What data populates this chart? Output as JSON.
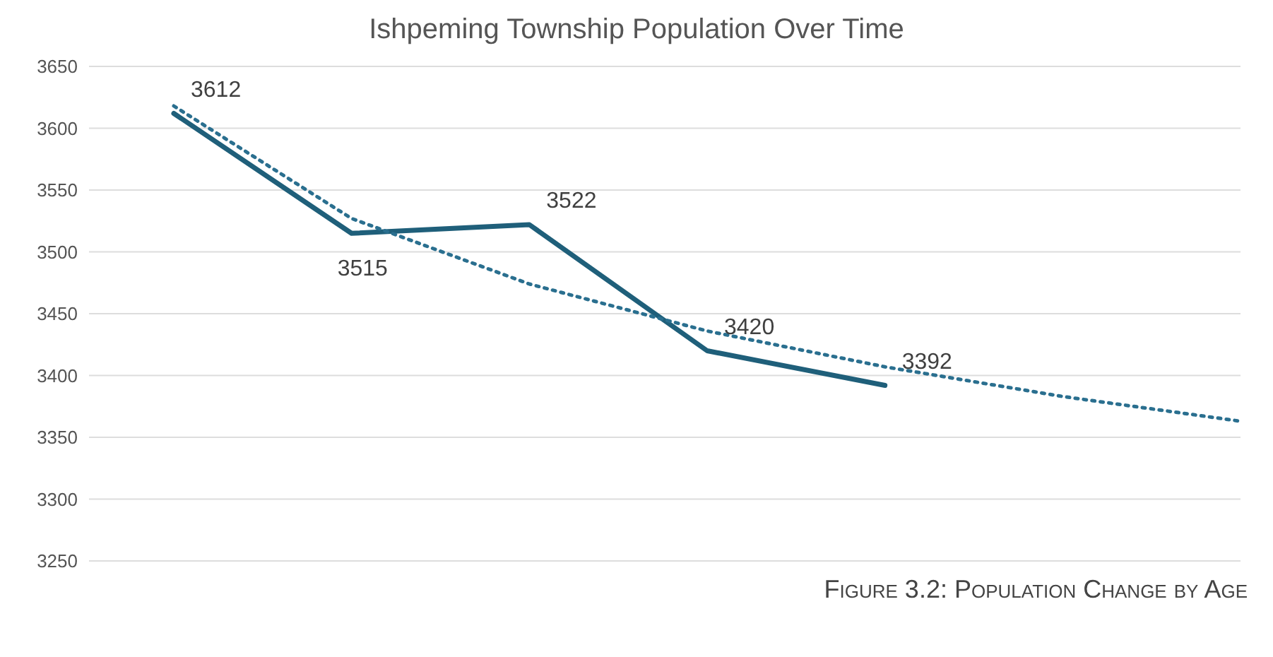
{
  "chart_data": {
    "type": "line",
    "title": "Ishpeming Township Population Over Time",
    "categories": [
      null,
      null,
      null,
      null,
      null,
      null,
      null
    ],
    "series": [
      {
        "color": "#1f5f7a",
        "values": [
          3612,
          3515,
          3522,
          3420,
          3392,
          null,
          null
        ],
        "value_labels": [
          "3612",
          "3515",
          "3522",
          "3420",
          "3392",
          null,
          null
        ],
        "line_style": "solid"
      },
      {
        "color": "#2a6f8f",
        "values": [
          3618,
          3527,
          3474,
          3436,
          3407,
          3383,
          3363
        ],
        "line_style": "dotted"
      }
    ],
    "ylim": [
      3250,
      3650
    ],
    "yticks": [
      3250,
      3300,
      3350,
      3400,
      3450,
      3500,
      3550,
      3600,
      3650
    ],
    "grid": "y",
    "legend": false,
    "marker": "none",
    "tick_labels": "y",
    "annotations": [
      "Figure 3.2: Population Change by Age"
    ]
  }
}
